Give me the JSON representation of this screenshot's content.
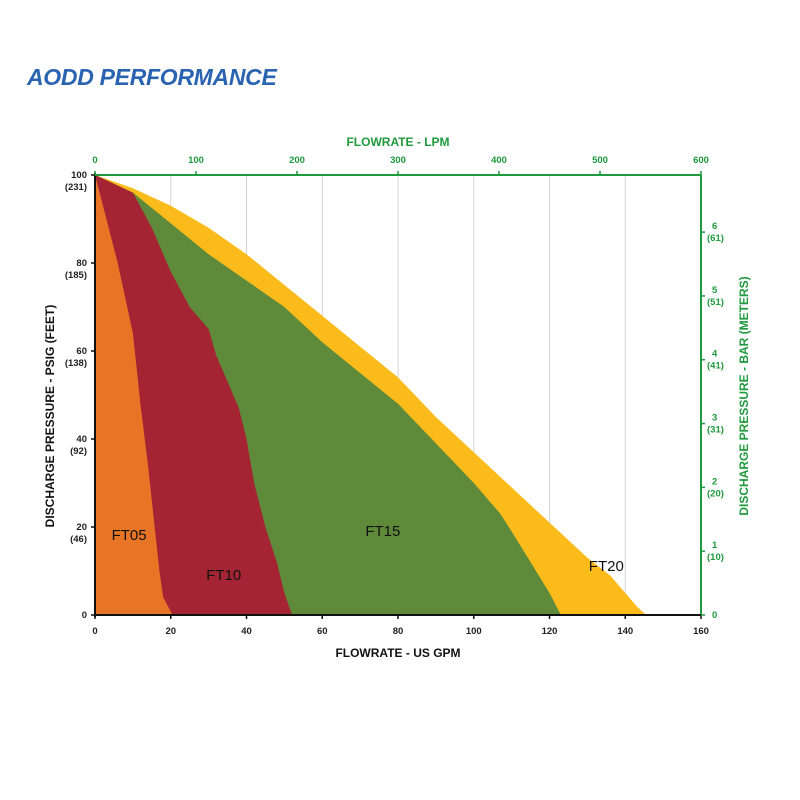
{
  "title": "AODD PERFORMANCE",
  "chart_data": {
    "type": "area",
    "xlabel": "FLOWRATE - US GPM",
    "ylabel": "DISCHARGE PRESSURE - PSIG (FEET)",
    "x2label": "FLOWRATE - LPM",
    "y2label": "DISCHARGE PRESSURE - BAR (METERS)",
    "xlim": [
      0,
      160
    ],
    "ylim": [
      0,
      100
    ],
    "x_ticks": [
      "0",
      "20",
      "40",
      "60",
      "80",
      "100",
      "120",
      "140",
      "160"
    ],
    "y_ticks": [
      {
        "value": 0,
        "label": "0",
        "sub": ""
      },
      {
        "value": 20,
        "label": "20",
        "sub": "(46)"
      },
      {
        "value": 40,
        "label": "40",
        "sub": "(92)"
      },
      {
        "value": 60,
        "label": "60",
        "sub": "(138)"
      },
      {
        "value": 80,
        "label": "80",
        "sub": "(185)"
      },
      {
        "value": 100,
        "label": "100",
        "sub": "(231)"
      }
    ],
    "x2lim": [
      0,
      600
    ],
    "x2_ticks": [
      "0",
      "100",
      "200",
      "300",
      "400",
      "500",
      "600"
    ],
    "y2lim": [
      0,
      6.895
    ],
    "y2_ticks": [
      {
        "value": 0,
        "label": "0",
        "sub": ""
      },
      {
        "value": 1,
        "label": "1",
        "sub": "(10)"
      },
      {
        "value": 2,
        "label": "2",
        "sub": "(20)"
      },
      {
        "value": 3,
        "label": "3",
        "sub": "(31)"
      },
      {
        "value": 4,
        "label": "4",
        "sub": "(41)"
      },
      {
        "value": 5,
        "label": "5",
        "sub": "(51)"
      },
      {
        "value": 6,
        "label": "6",
        "sub": "(61)"
      }
    ],
    "grid": "vertical",
    "series": [
      {
        "name": "FT20",
        "color": "#fbbb1b",
        "label_at": [
          135,
          10
        ],
        "points": [
          [
            0,
            100
          ],
          [
            10,
            97
          ],
          [
            20,
            93
          ],
          [
            30,
            88
          ],
          [
            40,
            82
          ],
          [
            50,
            75
          ],
          [
            60,
            68
          ],
          [
            70,
            61
          ],
          [
            80,
            54
          ],
          [
            90,
            45
          ],
          [
            100,
            37
          ],
          [
            110,
            29
          ],
          [
            120,
            21
          ],
          [
            130,
            13
          ],
          [
            136,
            9
          ],
          [
            140,
            5
          ],
          [
            143,
            2
          ],
          [
            145.5,
            0
          ]
        ]
      },
      {
        "name": "FT15",
        "color": "#5f8a3a",
        "label_at": [
          76,
          18
        ],
        "points": [
          [
            0,
            100
          ],
          [
            10,
            96
          ],
          [
            20,
            89
          ],
          [
            30,
            82
          ],
          [
            40,
            76
          ],
          [
            50,
            70
          ],
          [
            60,
            62
          ],
          [
            70,
            55
          ],
          [
            80,
            48
          ],
          [
            90,
            39
          ],
          [
            100,
            30
          ],
          [
            107,
            23
          ],
          [
            110,
            19
          ],
          [
            115,
            12
          ],
          [
            120,
            5
          ],
          [
            123,
            0
          ]
        ]
      },
      {
        "name": "FT10",
        "color": "#a52434",
        "label_at": [
          34,
          8
        ],
        "points": [
          [
            0,
            100
          ],
          [
            5,
            98
          ],
          [
            10,
            96
          ],
          [
            15,
            88
          ],
          [
            20,
            78
          ],
          [
            25,
            70
          ],
          [
            30,
            65
          ],
          [
            32,
            59
          ],
          [
            35,
            53
          ],
          [
            38,
            47
          ],
          [
            40,
            40
          ],
          [
            42,
            30
          ],
          [
            45,
            20
          ],
          [
            48,
            12
          ],
          [
            50,
            5
          ],
          [
            52,
            0
          ]
        ]
      },
      {
        "name": "FT05",
        "color": "#e87526",
        "label_at": [
          9,
          17
        ],
        "points": [
          [
            0,
            100
          ],
          [
            3,
            90
          ],
          [
            6,
            80
          ],
          [
            8,
            72
          ],
          [
            10,
            64
          ],
          [
            11,
            56
          ],
          [
            12,
            48
          ],
          [
            13,
            41
          ],
          [
            14,
            34
          ],
          [
            15,
            26
          ],
          [
            16,
            18
          ],
          [
            17,
            10
          ],
          [
            18,
            4
          ],
          [
            20.5,
            0
          ]
        ]
      }
    ]
  }
}
